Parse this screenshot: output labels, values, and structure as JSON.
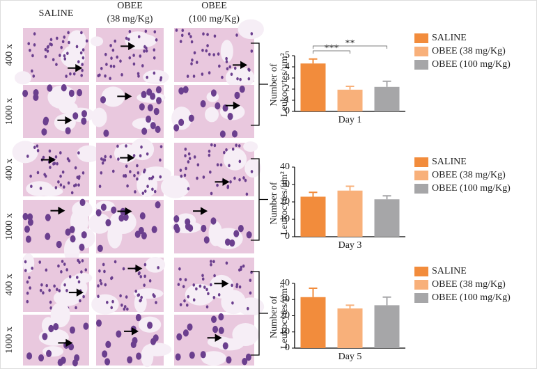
{
  "panel": {
    "column_headers": [
      [
        "SALINE"
      ],
      [
        "OBEE",
        "(38 mg/Kg)"
      ],
      [
        "OBEE",
        "(100 mg/Kg)"
      ]
    ],
    "row_labels": [
      "400 x",
      "1000 x",
      "400 x",
      "1000 x",
      "400 x",
      "1000 x"
    ]
  },
  "chart_data": [
    {
      "type": "bar",
      "categories": [
        "SALINE",
        "OBEE (38 mg/Kg)",
        "OBEE (100 mg/Kg)"
      ],
      "values": [
        4.3,
        1.95,
        2.2
      ],
      "errors": [
        0.4,
        0.3,
        0.5
      ],
      "colors": [
        "#f28c3c",
        "#f8b07a",
        "#a6a6a8"
      ],
      "ylabel": [
        "Number of",
        "Leukocytes/µm²"
      ],
      "xlabel": "Day 1",
      "ylim": [
        0,
        5
      ],
      "yticks": [
        0,
        1,
        2,
        3,
        4,
        5
      ],
      "annotations": [
        "***",
        "**"
      ]
    },
    {
      "type": "bar",
      "categories": [
        "SALINE",
        "OBEE (38 mg/Kg)",
        "OBEE (100 mg/Kg)"
      ],
      "values": [
        23,
        26.5,
        21.5
      ],
      "errors": [
        2.5,
        2.5,
        2
      ],
      "colors": [
        "#f28c3c",
        "#f8b07a",
        "#a6a6a8"
      ],
      "ylabel": [
        "Number of",
        "Leukocytes/µm²"
      ],
      "xlabel": "Day 3",
      "ylim": [
        0,
        40
      ],
      "yticks": [
        0,
        10,
        20,
        30,
        40
      ]
    },
    {
      "type": "bar",
      "categories": [
        "SALINE",
        "OBEE (38 mg/Kg)",
        "OBEE (100 mg/Kg)"
      ],
      "values": [
        31.5,
        24.5,
        26.5
      ],
      "errors": [
        5.5,
        2,
        5
      ],
      "colors": [
        "#f28c3c",
        "#f8b07a",
        "#a6a6a8"
      ],
      "ylabel": [
        "Number of",
        "Leukocytes/µm²"
      ],
      "xlabel": "Day 5",
      "ylim": [
        0,
        40
      ],
      "yticks": [
        0,
        10,
        20,
        30,
        40
      ]
    }
  ]
}
